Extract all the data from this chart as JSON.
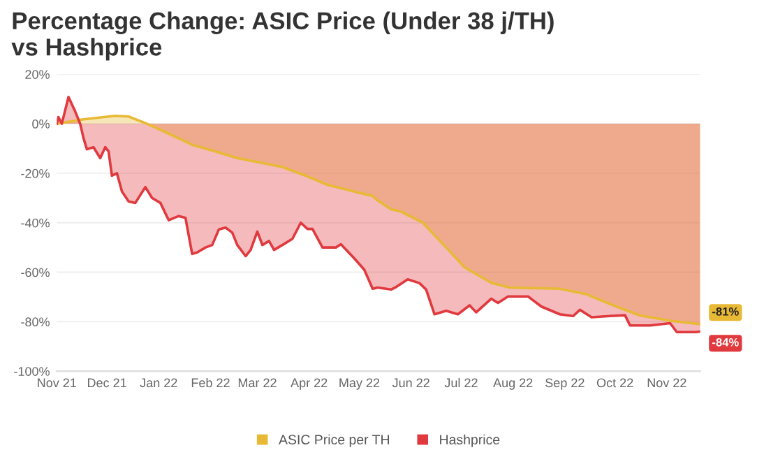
{
  "chart_data": {
    "type": "area",
    "title": "Percentage Change: ASIC Price (Under 38 j/TH)\nvs Hashprice",
    "series": [
      {
        "name": "ASIC Price per TH",
        "color": "#e8b935",
        "x": [
          "2021-11-01",
          "2021-11-17",
          "2021-12-06",
          "2021-12-14",
          "2021-12-25",
          "2022-01-07",
          "2022-01-21",
          "2022-02-04",
          "2022-02-17",
          "2022-03-03",
          "2022-03-16",
          "2022-03-30",
          "2022-04-12",
          "2022-04-28",
          "2022-05-09",
          "2022-05-12",
          "2022-05-20",
          "2022-05-26",
          "2022-06-08",
          "2022-06-22",
          "2022-07-03",
          "2022-07-19",
          "2022-07-30",
          "2022-08-29",
          "2022-09-14",
          "2022-09-30",
          "2022-10-16",
          "2022-11-04",
          "2022-11-21"
        ],
        "values": [
          0,
          1.8,
          3.2,
          2.9,
          0,
          -4,
          -8.5,
          -11.2,
          -13.9,
          -15.7,
          -17.5,
          -21,
          -24.7,
          -27.4,
          -29.2,
          -31,
          -34.6,
          -35.5,
          -40,
          -50,
          -58,
          -64.3,
          -66.2,
          -66.7,
          -68.9,
          -73.4,
          -77.5,
          -79.7,
          -81
        ]
      },
      {
        "name": "Hashprice",
        "color": "#e0393e",
        "x": [
          "2021-11-01",
          "2021-11-02",
          "2021-11-04",
          "2021-11-08",
          "2021-11-12",
          "2021-11-15",
          "2021-11-17",
          "2021-11-19",
          "2021-11-23",
          "2021-11-27",
          "2021-11-30",
          "2021-12-02",
          "2021-12-04",
          "2021-12-07",
          "2021-12-10",
          "2021-12-14",
          "2021-12-18",
          "2021-12-24",
          "2021-12-28",
          "2022-01-02",
          "2022-01-07",
          "2022-01-13",
          "2022-01-17",
          "2022-01-21",
          "2022-01-24",
          "2022-01-29",
          "2022-02-02",
          "2022-02-06",
          "2022-02-10",
          "2022-02-14",
          "2022-02-17",
          "2022-02-22",
          "2022-02-25",
          "2022-03-01",
          "2022-03-04",
          "2022-03-08",
          "2022-03-11",
          "2022-03-16",
          "2022-03-22",
          "2022-03-27",
          "2022-03-31",
          "2022-04-03",
          "2022-04-09",
          "2022-04-17",
          "2022-04-20",
          "2022-04-28",
          "2022-05-04",
          "2022-05-09",
          "2022-05-12",
          "2022-05-20",
          "2022-05-23",
          "2022-05-30",
          "2022-06-06",
          "2022-06-10",
          "2022-06-15",
          "2022-06-22",
          "2022-06-29",
          "2022-07-06",
          "2022-07-10",
          "2022-07-19",
          "2022-07-23",
          "2022-07-29",
          "2022-08-10",
          "2022-08-18",
          "2022-08-29",
          "2022-09-06",
          "2022-09-10",
          "2022-09-17",
          "2022-09-28",
          "2022-10-07",
          "2022-10-10",
          "2022-10-22",
          "2022-11-03",
          "2022-11-07",
          "2022-11-18",
          "2022-11-21"
        ],
        "values": [
          0,
          2.7,
          0,
          10.8,
          5,
          0,
          -5.8,
          -10.3,
          -9.5,
          -13.9,
          -9.5,
          -11.2,
          -21,
          -20,
          -27.4,
          -31.4,
          -32,
          -25.6,
          -30,
          -32,
          -39,
          -37.3,
          -38,
          -52.6,
          -52,
          -50,
          -49,
          -42.7,
          -42,
          -44,
          -49,
          -53.5,
          -51,
          -43.6,
          -49,
          -47.4,
          -51,
          -49,
          -46.5,
          -40,
          -42.5,
          -42.5,
          -50,
          -50,
          -48.7,
          -54.4,
          -59,
          -66.7,
          -66.2,
          -67,
          -66,
          -62.9,
          -64.4,
          -67,
          -77,
          -75.6,
          -77,
          -73.4,
          -76.2,
          -70.7,
          -72.4,
          -69.8,
          -69.8,
          -73.9,
          -77,
          -77.7,
          -75.2,
          -78.2,
          -77.7,
          -77.4,
          -81.5,
          -81.5,
          -80.6,
          -84.2,
          -84.2,
          -84
        ]
      }
    ],
    "annotations": [
      {
        "text": "-81%",
        "x": "2022-11-21",
        "y": -81
      },
      {
        "text": "-84%",
        "x": "2022-11-21",
        "y": -84
      }
    ],
    "xlim": [
      "2021-11-01",
      "2022-11-21"
    ],
    "xticks": [
      {
        "value": "2021-11-01",
        "label": "Nov 21"
      },
      {
        "value": "2021-12-01",
        "label": "Dec 21"
      },
      {
        "value": "2022-01-01",
        "label": "Jan 22"
      },
      {
        "value": "2022-02-01",
        "label": "Feb 22"
      },
      {
        "value": "2022-03-01",
        "label": "Mar 22"
      },
      {
        "value": "2022-04-01",
        "label": "Apr 22"
      },
      {
        "value": "2022-05-01",
        "label": "May 22"
      },
      {
        "value": "2022-06-01",
        "label": "Jun 22"
      },
      {
        "value": "2022-07-01",
        "label": "Jul 22"
      },
      {
        "value": "2022-08-01",
        "label": "Aug 22"
      },
      {
        "value": "2022-09-01",
        "label": "Sep 22"
      },
      {
        "value": "2022-10-01",
        "label": "Oct 22"
      },
      {
        "value": "2022-11-01",
        "label": "Nov 22"
      }
    ],
    "ylim": [
      -100,
      20
    ],
    "yticks": [
      {
        "value": -100,
        "label": "-100%"
      },
      {
        "value": -80,
        "label": "-80%"
      },
      {
        "value": -60,
        "label": "-60%"
      },
      {
        "value": -40,
        "label": "-40%"
      },
      {
        "value": -20,
        "label": "-20%"
      },
      {
        "value": 0,
        "label": "0%"
      },
      {
        "value": 20,
        "label": "20%"
      }
    ],
    "grid": "y",
    "legend": "bottom",
    "marker": "none",
    "line_style": "solid"
  }
}
